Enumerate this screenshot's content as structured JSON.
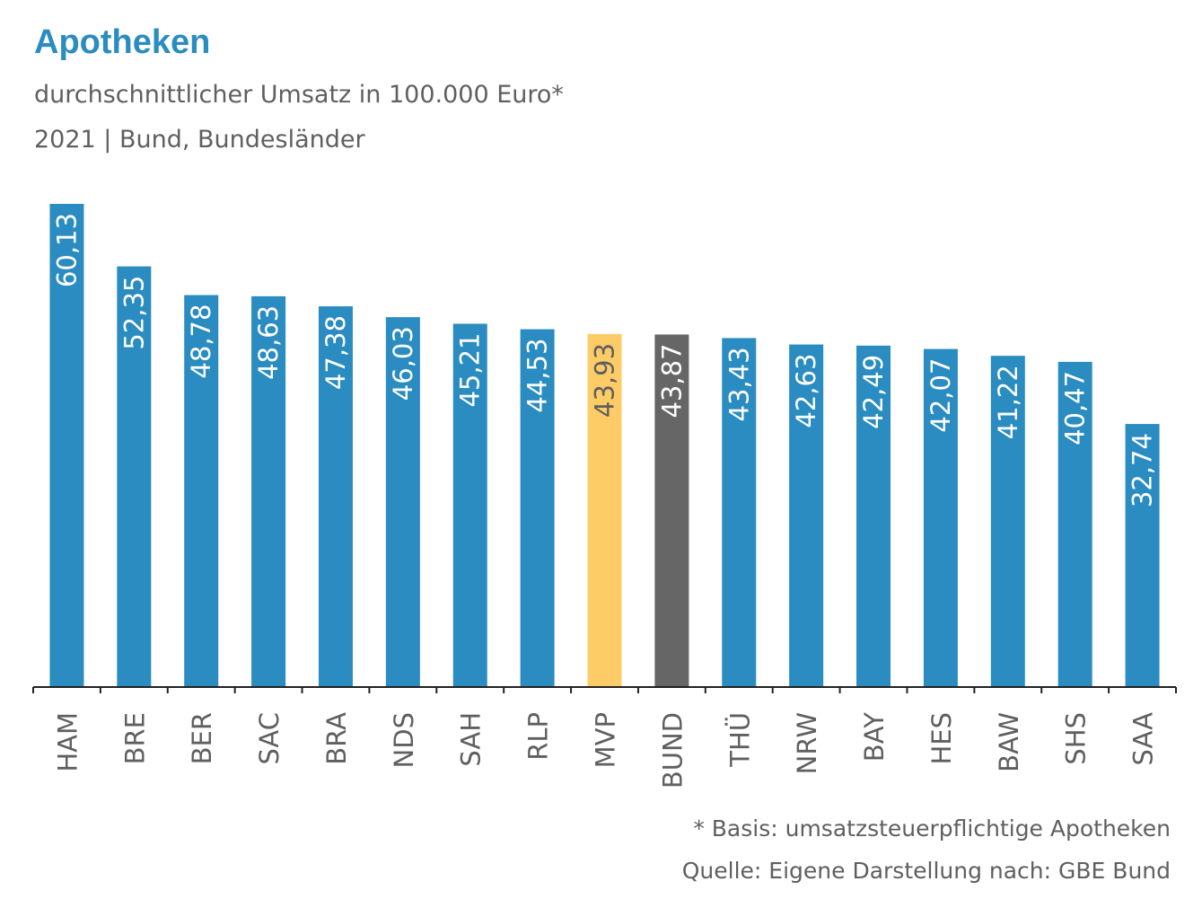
{
  "header": {
    "title": "Apotheken",
    "subtitle": "durchschnittlicher Umsatz in 100.000 Euro*",
    "subtitle2": "2021 | Bund, Bundesländer"
  },
  "footer": {
    "note": "* Basis: umsatzsteuerpflichtige Apotheken",
    "source": "Quelle: Eigene Darstellung nach: GBE Bund"
  },
  "colors": {
    "default": "#2a8cc0",
    "highlight": "#fecc66",
    "national": "#666666",
    "label_light": "#ffffff",
    "label_dark": "#5f5f5f",
    "axis": "#222222",
    "tick_label": "#5f5f5f"
  },
  "chart_data": {
    "type": "bar",
    "categories": [
      "HAM",
      "BRE",
      "BER",
      "SAC",
      "BRA",
      "NDS",
      "SAH",
      "RLP",
      "MVP",
      "BUND",
      "THÜ",
      "NRW",
      "BAY",
      "HES",
      "BAW",
      "SHS",
      "SAA"
    ],
    "values": [
      60.13,
      52.35,
      48.78,
      48.63,
      47.38,
      46.03,
      45.21,
      44.53,
      43.93,
      43.87,
      43.43,
      42.63,
      42.49,
      42.07,
      41.22,
      40.47,
      32.74
    ],
    "labels": [
      "60,13",
      "52,35",
      "48,78",
      "48,63",
      "47,38",
      "46,03",
      "45,21",
      "44,53",
      "43,93",
      "43,87",
      "43,43",
      "42,63",
      "42,49",
      "42,07",
      "41,22",
      "40,47",
      "32,74"
    ],
    "bar_colors": [
      "default",
      "default",
      "default",
      "default",
      "default",
      "default",
      "default",
      "default",
      "highlight",
      "national",
      "default",
      "default",
      "default",
      "default",
      "default",
      "default",
      "default"
    ],
    "ylim": [
      0,
      60.13
    ],
    "grid": false,
    "legend": "none"
  }
}
